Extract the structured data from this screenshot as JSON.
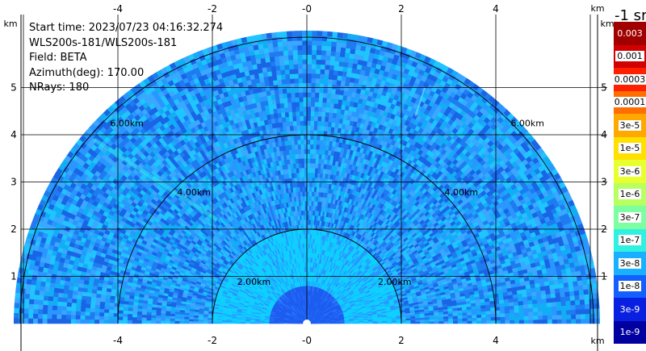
{
  "info": {
    "start_time": "Start time: 2023/07/23 04:16:32.274",
    "instrument": "WLS200s-181/WLS200s-181",
    "field": "Field: BETA",
    "azimuth": "Azimuth(deg): 170.00",
    "nrays": "NRays: 180"
  },
  "axes": {
    "unit_label": "km",
    "x_ticks": [
      "-4",
      "-2",
      "-0",
      "2",
      "4"
    ],
    "y_ticks": [
      "1",
      "2",
      "3",
      "4",
      "5"
    ],
    "range_rings": [
      "2.00km",
      "4.00km",
      "6.00km"
    ]
  },
  "colorbar": {
    "units": "-1 sr",
    "labels": [
      "0.003",
      "0.001",
      "0.0003",
      "0.0001",
      "3e-5",
      "1e-5",
      "3e-6",
      "1e-6",
      "3e-7",
      "1e-7",
      "3e-8",
      "1e-8",
      "3e-9",
      "1e-9"
    ],
    "colors": [
      "#a00000",
      "#d20000",
      "#ff2000",
      "#ff6e00",
      "#ffa800",
      "#ffe000",
      "#e8ff30",
      "#b8ff60",
      "#7cffa0",
      "#30f0e0",
      "#18b0ff",
      "#1460ff",
      "#0a20e0",
      "#0000a0"
    ]
  }
}
